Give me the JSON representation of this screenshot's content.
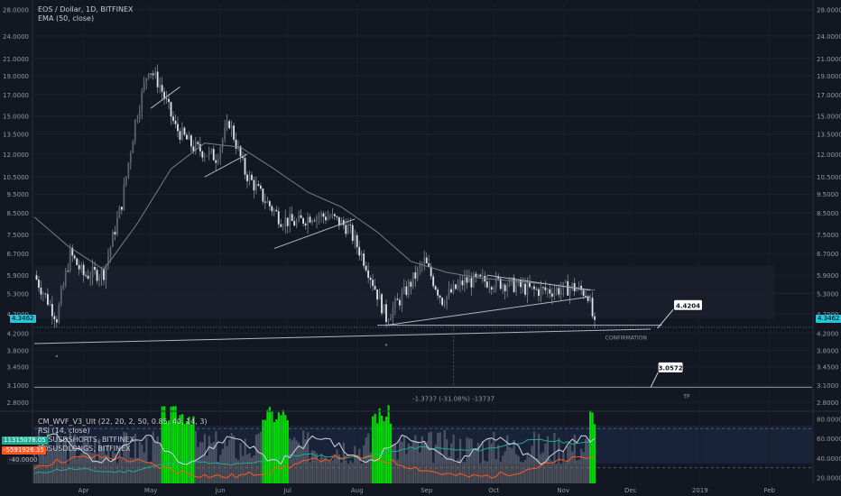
{
  "legend": {
    "symbol": "EOS / Dollar, 1D, BITFINEX",
    "ema": "EMA (50, close)"
  },
  "price_axis": {
    "ticks": [
      "28.0000",
      "24.0000",
      "21.0000",
      "19.0000",
      "17.0000",
      "15.0000",
      "13.5000",
      "12.0000",
      "10.5000",
      "9.5000",
      "8.5000",
      "7.5000",
      "6.7000",
      "5.9000",
      "5.3000",
      "4.7000",
      "4.2000",
      "3.8000",
      "3.4500",
      "3.1000",
      "2.8000"
    ],
    "last_price": "4.3462"
  },
  "osc_axis": {
    "ticks": [
      "80.0000",
      "60.0000",
      "40.0000",
      "20.0000"
    ],
    "left_tags": [
      "11315078.05",
      "-5591926.35",
      "-40.0000"
    ]
  },
  "indicators": {
    "wvf": "CM_WVF_V3_Ult (22, 20, 2, 50, 0.85, 40, 14, 3)",
    "rsi": "RSI (14, close)",
    "shorts": "EOSUSDSHORTS, BITFINEX",
    "longs": "EOSUSDLONGS, BITFINEX"
  },
  "time_axis": [
    "Apr",
    "May",
    "Jun",
    "Jul",
    "Aug",
    "Sep",
    "Oct",
    "Nov",
    "Dec",
    "2019",
    "Feb"
  ],
  "annotations": {
    "confirmation_label": "CONFIRMATION",
    "confirmation_price": "4.4204",
    "tp_label": "TP",
    "tp_price": "3.0572",
    "measure": "-1.3737 (-31.08%) -13737"
  },
  "colors": {
    "background": "#131722",
    "up": "#c8cbd2",
    "down": "#e0e3eb",
    "ema": "#787b86",
    "trendline": "#b2b5be",
    "rsi": "#f0f3fa",
    "shorts": "#ff5722",
    "longs": "#22ab94",
    "wvf_spike": "#00e600",
    "wvf_normal": "#787b86",
    "last_price": "#26c6da"
  },
  "chart_data": {
    "type": "candlestick",
    "title": "EOS / Dollar, 1D, BITFINEX",
    "y_scale": "log",
    "ylim": [
      2.7,
      29
    ],
    "x_range": [
      "2018-03-10",
      "2019-02-20"
    ],
    "price_path": [
      [
        "2018-03-10",
        5.9
      ],
      [
        "2018-03-20",
        4.6
      ],
      [
        "2018-03-26",
        6.7
      ],
      [
        "2018-04-01",
        5.9
      ],
      [
        "2018-04-10",
        6.0
      ],
      [
        "2018-04-18",
        9.0
      ],
      [
        "2018-04-24",
        14.5
      ],
      [
        "2018-04-30",
        20.0
      ],
      [
        "2018-05-05",
        18.0
      ],
      [
        "2018-05-12",
        14.0
      ],
      [
        "2018-05-20",
        12.5
      ],
      [
        "2018-05-30",
        11.8
      ],
      [
        "2018-06-05",
        14.5
      ],
      [
        "2018-06-12",
        10.8
      ],
      [
        "2018-06-20",
        9.3
      ],
      [
        "2018-06-28",
        8.2
      ],
      [
        "2018-07-05",
        8.0
      ],
      [
        "2018-07-12",
        8.4
      ],
      [
        "2018-07-20",
        8.3
      ],
      [
        "2018-07-28",
        7.8
      ],
      [
        "2018-08-05",
        6.3
      ],
      [
        "2018-08-14",
        4.6
      ],
      [
        "2018-08-22",
        5.3
      ],
      [
        "2018-08-31",
        6.4
      ],
      [
        "2018-09-08",
        5.1
      ],
      [
        "2018-09-18",
        5.7
      ],
      [
        "2018-09-28",
        5.7
      ],
      [
        "2018-10-08",
        5.6
      ],
      [
        "2018-10-18",
        5.4
      ],
      [
        "2018-10-28",
        5.4
      ],
      [
        "2018-11-05",
        5.5
      ],
      [
        "2018-11-12",
        5.3
      ],
      [
        "2018-11-15",
        4.35
      ]
    ],
    "ema": [
      [
        "2018-03-10",
        8.3
      ],
      [
        "2018-03-25",
        7.0
      ],
      [
        "2018-04-10",
        6.1
      ],
      [
        "2018-04-25",
        8.0
      ],
      [
        "2018-05-10",
        11.0
      ],
      [
        "2018-05-25",
        12.8
      ],
      [
        "2018-06-10",
        12.5
      ],
      [
        "2018-06-25",
        11.0
      ],
      [
        "2018-07-10",
        9.6
      ],
      [
        "2018-07-25",
        8.8
      ],
      [
        "2018-08-10",
        7.6
      ],
      [
        "2018-08-25",
        6.4
      ],
      [
        "2018-09-10",
        6.0
      ],
      [
        "2018-09-25",
        5.8
      ],
      [
        "2018-10-10",
        5.7
      ],
      [
        "2018-10-25",
        5.6
      ],
      [
        "2018-11-15",
        5.4
      ]
    ],
    "trendlines": [
      {
        "from": [
          "2018-03-10",
          3.95
        ],
        "to": [
          "2018-12-10",
          4.3
        ]
      },
      {
        "from": [
          "2018-05-01",
          15.7
        ],
        "to": [
          "2018-05-14",
          17.8
        ]
      },
      {
        "from": [
          "2018-05-25",
          10.5
        ],
        "to": [
          "2018-06-13",
          12.0
        ]
      },
      {
        "from": [
          "2018-06-25",
          6.9
        ],
        "to": [
          "2018-07-31",
          8.2
        ]
      },
      {
        "from": [
          "2018-08-14",
          4.4
        ],
        "to": [
          "2018-11-13",
          5.2
        ]
      },
      {
        "from": [
          "2018-09-28",
          5.9
        ],
        "to": [
          "2018-11-13",
          5.4
        ]
      },
      {
        "from": [
          "2018-08-10",
          4.4
        ],
        "to": [
          "2018-12-15",
          4.4
        ]
      }
    ],
    "horizontal_level": 3.06,
    "last_price": 4.3462
  }
}
